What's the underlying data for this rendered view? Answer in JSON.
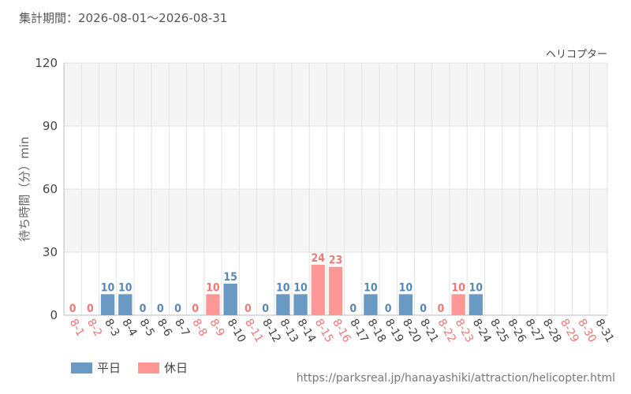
{
  "header": {
    "period": "集計期間：2026-08-01～2026-08-31"
  },
  "footer": {
    "source_url": "https://parksreal.jp/hanayashiki/attraction/helicopter.html"
  },
  "colors": {
    "weekday": "#6a9ac4",
    "holiday": "#ff9797",
    "holiday_text": "#f07878",
    "weekday_text": "#5a88b4"
  },
  "chart_data": {
    "type": "bar",
    "title": "ヘリコプター",
    "ylabel": "待ち時間（分）min",
    "ylim": [
      0,
      120
    ],
    "yticks": [
      0,
      30,
      60,
      90,
      120
    ],
    "grid": true,
    "legend_position": "bottom-left",
    "categories": [
      "8-1",
      "8-2",
      "8-3",
      "8-4",
      "8-5",
      "8-6",
      "8-7",
      "8-8",
      "8-9",
      "8-10",
      "8-11",
      "8-12",
      "8-13",
      "8-14",
      "8-15",
      "8-16",
      "8-17",
      "8-18",
      "8-19",
      "8-20",
      "8-21",
      "8-22",
      "8-23",
      "8-24",
      "8-25",
      "8-26",
      "8-27",
      "8-28",
      "8-29",
      "8-30",
      "8-31"
    ],
    "series": [
      {
        "name": "平日",
        "key": "weekday"
      },
      {
        "name": "休日",
        "key": "holiday"
      }
    ],
    "day_type": [
      "holiday",
      "holiday",
      "weekday",
      "weekday",
      "weekday",
      "weekday",
      "weekday",
      "holiday",
      "holiday",
      "weekday",
      "holiday",
      "weekday",
      "weekday",
      "weekday",
      "holiday",
      "holiday",
      "weekday",
      "weekday",
      "weekday",
      "weekday",
      "weekday",
      "holiday",
      "holiday",
      "weekday",
      "weekday",
      "weekday",
      "weekday",
      "weekday",
      "holiday",
      "holiday",
      "weekday"
    ],
    "values": [
      0,
      0,
      10,
      10,
      0,
      0,
      0,
      0,
      10,
      15,
      0,
      0,
      10,
      10,
      24,
      23,
      0,
      10,
      0,
      10,
      0,
      0,
      10,
      10,
      null,
      null,
      null,
      null,
      null,
      null,
      null
    ]
  }
}
